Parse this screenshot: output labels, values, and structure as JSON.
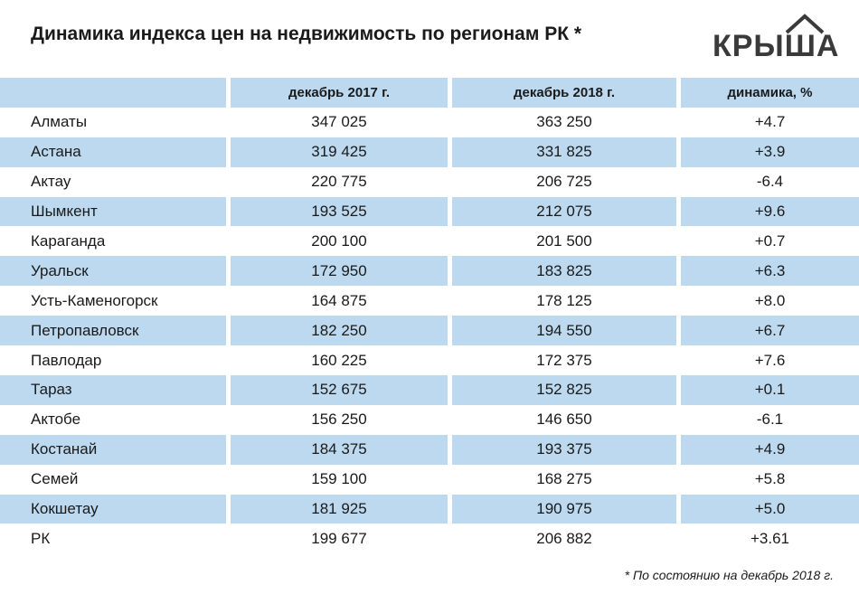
{
  "header": {
    "title": "Динамика индекса цен на недвижимость по регионам РК *",
    "logo": "КРЫША"
  },
  "table": {
    "columns": [
      "",
      "декабрь 2017 г.",
      "декабрь 2018 г.",
      "динамика, %"
    ],
    "rows": [
      [
        "Алматы",
        "347 025",
        "363 250",
        "+4.7"
      ],
      [
        "Астана",
        "319 425",
        "331 825",
        "+3.9"
      ],
      [
        "Актау",
        "220 775",
        "206 725",
        "-6.4"
      ],
      [
        "Шымкент",
        "193 525",
        "212 075",
        "+9.6"
      ],
      [
        "Караганда",
        "200 100",
        "201 500",
        "+0.7"
      ],
      [
        "Уральск",
        "172 950",
        "183 825",
        "+6.3"
      ],
      [
        "Усть-Каменогорск",
        "164 875",
        "178 125",
        "+8.0"
      ],
      [
        "Петропавловск",
        "182 250",
        "194 550",
        "+6.7"
      ],
      [
        "Павлодар",
        "160 225",
        "172 375",
        "+7.6"
      ],
      [
        "Тараз",
        "152 675",
        "152 825",
        "+0.1"
      ],
      [
        "Актобе",
        "156 250",
        "146 650",
        "-6.1"
      ],
      [
        "Костанай",
        "184 375",
        "193 375",
        "+4.9"
      ],
      [
        "Семей",
        "159 100",
        "168 275",
        "+5.8"
      ],
      [
        "Кокшетау",
        "181 925",
        "190 975",
        "+5.0"
      ],
      [
        "РК",
        "199 677",
        "206 882",
        "+3.61"
      ]
    ]
  },
  "footnote": "* По состоянию на декабрь 2018 г."
}
